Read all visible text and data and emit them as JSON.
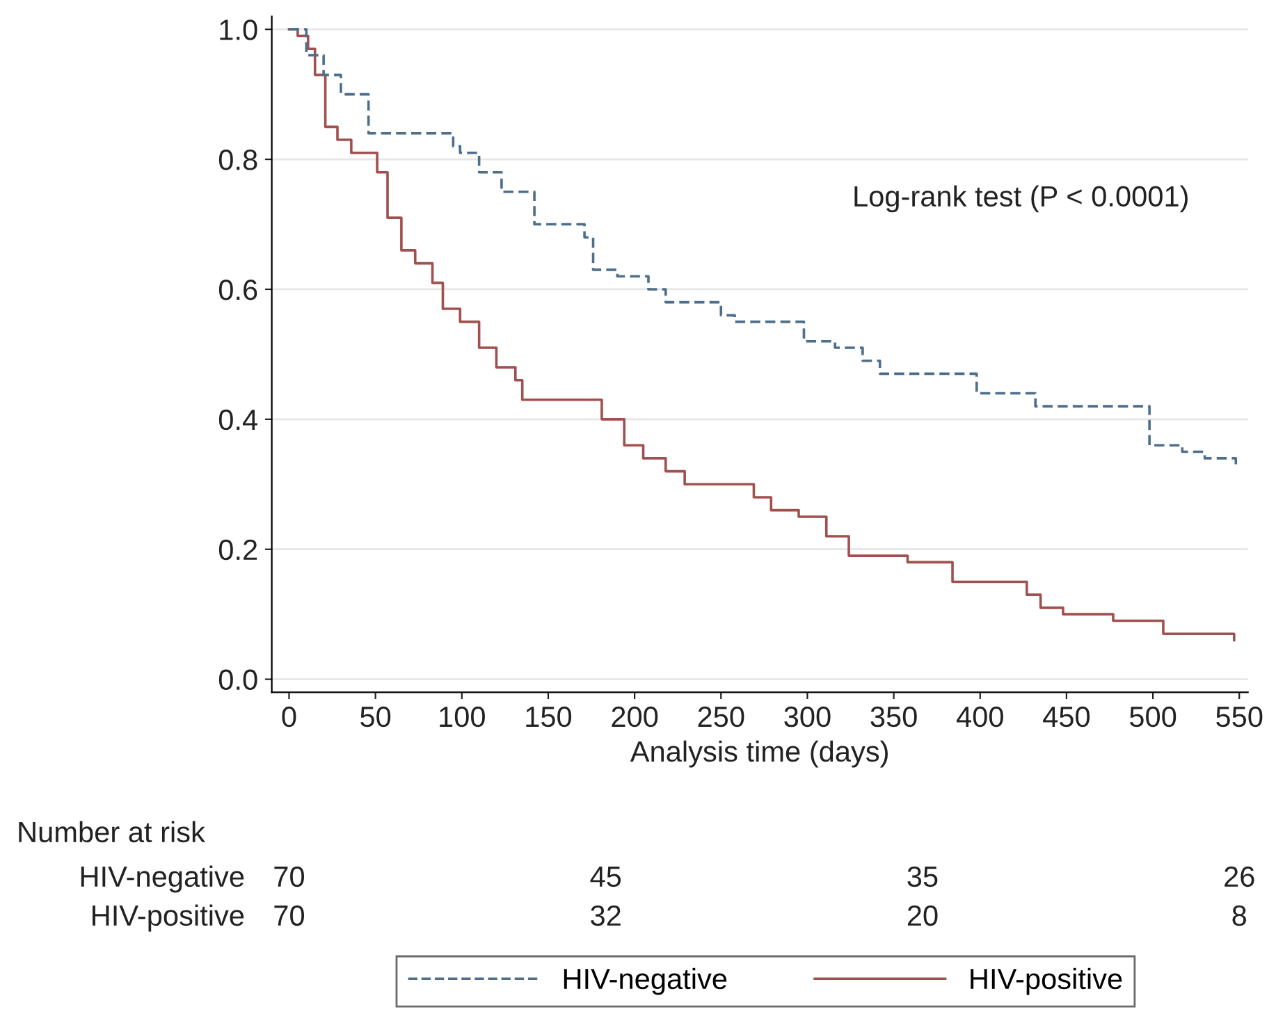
{
  "chart_data": {
    "type": "step",
    "xlabel": "Analysis time (days)",
    "series": [
      {
        "name": "HIV-negative",
        "color": "#4d6f8c",
        "line_style": "dashed",
        "x": [
          0,
          10,
          20,
          30,
          46,
          95,
          99,
          110,
          123,
          142,
          171,
          176,
          190,
          208,
          218,
          250,
          258,
          298,
          316,
          332,
          342,
          398,
          432,
          498,
          517,
          530,
          548
        ],
        "values": [
          1.0,
          0.96,
          0.93,
          0.9,
          0.84,
          0.82,
          0.81,
          0.78,
          0.75,
          0.7,
          0.68,
          0.63,
          0.62,
          0.6,
          0.58,
          0.56,
          0.55,
          0.52,
          0.51,
          0.49,
          0.47,
          0.44,
          0.42,
          0.36,
          0.35,
          0.34,
          0.33
        ]
      },
      {
        "name": "HIV-positive",
        "color": "#a0504f",
        "line_style": "solid",
        "x": [
          0,
          5,
          11,
          15,
          21,
          28,
          36,
          51,
          57,
          65,
          73,
          83,
          89,
          99,
          110,
          120,
          131,
          135,
          181,
          194,
          205,
          218,
          229,
          269,
          279,
          295,
          311,
          324,
          358,
          384,
          427,
          435,
          448,
          477,
          506,
          547
        ],
        "values": [
          1.0,
          0.99,
          0.97,
          0.93,
          0.85,
          0.83,
          0.81,
          0.78,
          0.71,
          0.66,
          0.64,
          0.61,
          0.57,
          0.55,
          0.51,
          0.48,
          0.46,
          0.43,
          0.4,
          0.36,
          0.34,
          0.32,
          0.3,
          0.28,
          0.26,
          0.25,
          0.22,
          0.19,
          0.18,
          0.15,
          0.13,
          0.11,
          0.1,
          0.09,
          0.07,
          0.06
        ]
      }
    ],
    "xlim": [
      -10,
      555
    ],
    "xticks": [
      0,
      50,
      100,
      150,
      200,
      250,
      300,
      350,
      400,
      450,
      500,
      550
    ],
    "ylim": [
      -0.02,
      1.02
    ],
    "yticks": [
      {
        "value": 0,
        "label": "0.0"
      },
      {
        "value": 0.2,
        "label": "0.2"
      },
      {
        "value": 0.4,
        "label": "0.4"
      },
      {
        "value": 0.6,
        "label": "0.6"
      },
      {
        "value": 0.8,
        "label": "0.8"
      },
      {
        "value": 1,
        "label": "1.0"
      }
    ],
    "grid": "y",
    "legend": "bottom",
    "annotations": [
      "Log-rank test (P < 0.0001)",
      "Number at risk",
      "HIV-negative",
      "70",
      "45",
      "35",
      "26",
      "HIV-positive",
      "70",
      "32",
      "20",
      "8"
    ]
  }
}
